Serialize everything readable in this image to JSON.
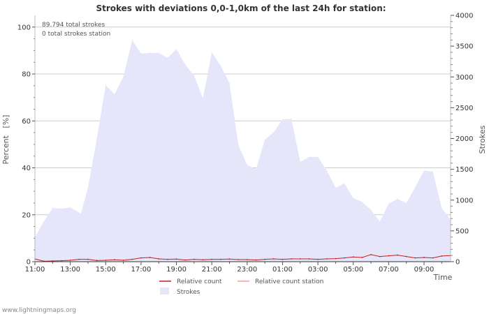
{
  "chart_data": {
    "type": "area",
    "title": "Strokes with deviations 0,0-1,0km of the last 24h for station:",
    "ylabel_left": "Percent   [%]",
    "ylabel_right": "Strokes",
    "xlabel": "Time",
    "ylim_left": [
      0,
      105
    ],
    "ylim_right": [
      0,
      4000
    ],
    "yticks_left": [
      0,
      20,
      40,
      60,
      80,
      100
    ],
    "yticks_right": [
      0,
      500,
      1000,
      1500,
      2000,
      2500,
      3000,
      3500,
      4000
    ],
    "x_hours": [
      0,
      23.5
    ],
    "xticks": [
      {
        "h": 0,
        "label": "11:00"
      },
      {
        "h": 2,
        "label": "13:00"
      },
      {
        "h": 4,
        "label": "15:00"
      },
      {
        "h": 6,
        "label": "17:00"
      },
      {
        "h": 8,
        "label": "19:00"
      },
      {
        "h": 10,
        "label": "21:00"
      },
      {
        "h": 12,
        "label": "23:00"
      },
      {
        "h": 14,
        "label": "01:00"
      },
      {
        "h": 16,
        "label": "03:00"
      },
      {
        "h": 18,
        "label": "05:00"
      },
      {
        "h": 20,
        "label": "07:00"
      },
      {
        "h": 22,
        "label": "09:00"
      }
    ],
    "info": [
      "89.794 total strokes",
      "0 total strokes station"
    ],
    "series": [
      {
        "name": "Strokes",
        "axis": "right",
        "color": "#e6e6fa",
        "x": [
          0,
          0.5,
          1,
          1.5,
          2,
          2.6,
          3,
          3.5,
          4,
          4.5,
          5,
          5.5,
          6,
          6.5,
          7,
          7.5,
          8,
          8.5,
          9,
          9.5,
          10,
          10.5,
          11,
          11.5,
          12,
          12.5,
          13,
          13.5,
          14,
          14.5,
          15,
          15.5,
          16,
          16.5,
          17,
          17.5,
          18,
          18.5,
          19,
          19.5,
          20,
          20.5,
          21,
          21.5,
          22,
          22.5,
          23,
          23.5
        ],
        "values": [
          400,
          650,
          870,
          860,
          880,
          780,
          1200,
          2000,
          2870,
          2720,
          3000,
          3600,
          3380,
          3390,
          3390,
          3310,
          3450,
          3200,
          3020,
          2650,
          3400,
          3180,
          2900,
          1900,
          1570,
          1500,
          1980,
          2100,
          2310,
          2320,
          1620,
          1700,
          1700,
          1480,
          1200,
          1270,
          1030,
          970,
          840,
          650,
          940,
          1020,
          950,
          1210,
          1480,
          1460,
          870,
          680
        ]
      },
      {
        "name": "Relative count",
        "axis": "left",
        "color": "#c02020",
        "x": [
          0,
          0.5,
          1,
          1.5,
          2,
          2.5,
          3,
          3.5,
          4,
          4.5,
          5,
          5.5,
          6,
          6.5,
          7,
          7.5,
          8,
          8.5,
          9,
          9.5,
          10,
          10.5,
          11,
          11.5,
          12,
          12.5,
          13,
          13.5,
          14,
          14.5,
          15,
          15.5,
          16,
          16.5,
          17,
          17.5,
          18,
          18.5,
          19,
          19.5,
          20,
          20.5,
          21,
          21.5,
          22,
          22.5,
          23,
          23.5
        ],
        "values": [
          1.2,
          0.2,
          0.3,
          0.4,
          0.6,
          1.0,
          1.0,
          0.5,
          0.6,
          0.8,
          0.6,
          1.0,
          1.6,
          1.8,
          1.2,
          1.0,
          1.1,
          0.7,
          1.0,
          0.8,
          1.0,
          1.0,
          1.1,
          0.9,
          0.9,
          0.7,
          1.0,
          1.2,
          1.0,
          1.2,
          1.2,
          1.2,
          1.0,
          1.2,
          1.3,
          1.6,
          2.0,
          1.8,
          3.0,
          2.2,
          2.5,
          2.8,
          2.2,
          1.6,
          1.8,
          1.6,
          2.4,
          2.6
        ]
      },
      {
        "name": "Relative count station",
        "axis": "left",
        "color": "#f0a0a0",
        "x": [],
        "values": []
      }
    ],
    "legend": [
      {
        "label": "Relative count",
        "kind": "line",
        "color": "#c02020"
      },
      {
        "label": "Relative count station",
        "kind": "line",
        "color": "#f0a0a0"
      },
      {
        "label": "Strokes",
        "kind": "area",
        "color": "#e6e6fa"
      }
    ]
  },
  "footer": "www.lightningmaps.org"
}
